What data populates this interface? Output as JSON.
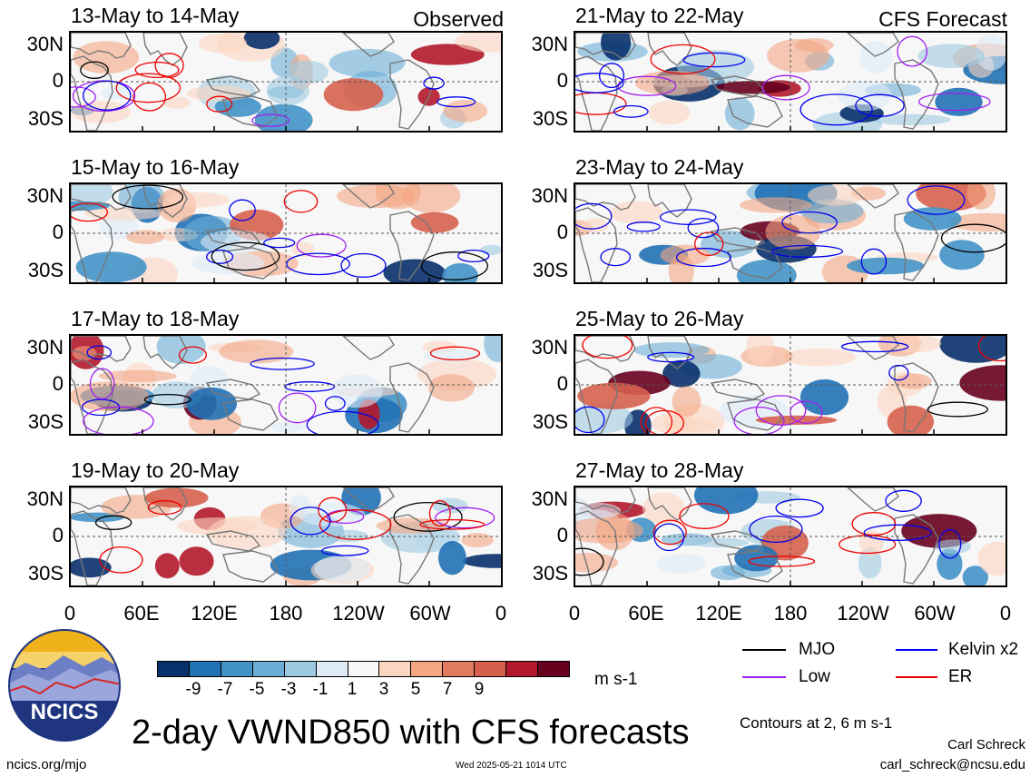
{
  "chart_data": {
    "type": "heatmap",
    "title": "2-day VWND850 with CFS forecasts",
    "variable": "VWND850",
    "units": "m s-1",
    "panel_columns": [
      {
        "tag": "Observed"
      },
      {
        "tag": "CFS Forecast"
      }
    ],
    "panels": [
      {
        "title": "13-May to 14-May",
        "source": "Observed"
      },
      {
        "title": "15-May to 16-May",
        "source": "Observed"
      },
      {
        "title": "17-May to 18-May",
        "source": "Observed"
      },
      {
        "title": "19-May to 20-May",
        "source": "Observed"
      },
      {
        "title": "21-May to 22-May",
        "source": "CFS Forecast"
      },
      {
        "title": "23-May to 24-May",
        "source": "CFS Forecast"
      },
      {
        "title": "25-May to 26-May",
        "source": "CFS Forecast"
      },
      {
        "title": "27-May to 28-May",
        "source": "CFS Forecast"
      }
    ],
    "y_tick_labels": [
      "30N",
      "0",
      "30S"
    ],
    "x_tick_labels": [
      "0",
      "60E",
      "120E",
      "180",
      "120W",
      "60W",
      "0"
    ],
    "colorbar": {
      "ticks": [
        "-9",
        "-7",
        "-5",
        "-3",
        "-1",
        "1",
        "3",
        "5",
        "7",
        "9"
      ],
      "colors": [
        "#08306b",
        "#2171b5",
        "#4292c6",
        "#6baed6",
        "#9ecae1",
        "#deebf7",
        "#f7f7f7",
        "#fcd5c0",
        "#f4a582",
        "#e07b60",
        "#d6604d",
        "#b2182b",
        "#67001f"
      ]
    },
    "legend": [
      {
        "label": "MJO",
        "color": "#000000"
      },
      {
        "label": "Kelvin x2",
        "color": "#0000ee"
      },
      {
        "label": "Low",
        "color": "#a020f0"
      },
      {
        "label": "ER",
        "color": "#ee0000"
      }
    ],
    "contour_note": "Contours at 2, 6 m s-1"
  },
  "footer": {
    "website": "ncics.org/mjo",
    "timestamp": "Wed 2025-05-21 1014 UTC",
    "author": "Carl Schreck",
    "email": "carl_schreck@ncsu.edu",
    "logo_text": "NCICS"
  }
}
